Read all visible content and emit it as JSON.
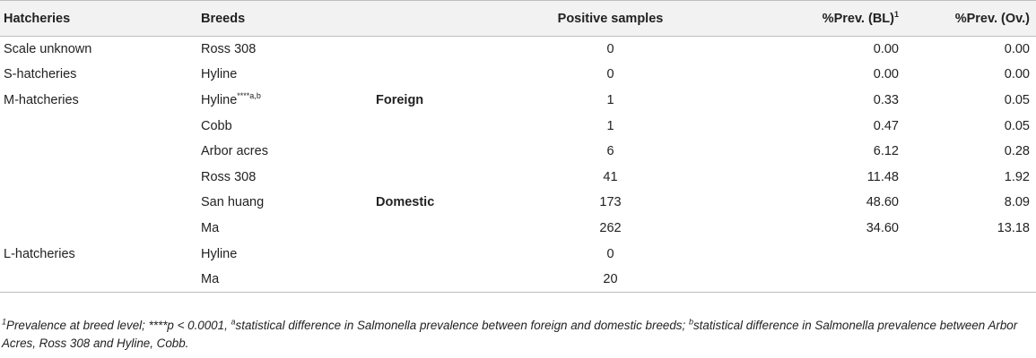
{
  "header": {
    "hatcheries": "Hatcheries",
    "breeds": "Breeds",
    "origin": "",
    "positive": "Positive samples",
    "prev_bl": "%Prev. (BL)",
    "prev_bl_sup": "1",
    "prev_ov": "%Prev. (Ov.)"
  },
  "rows": [
    {
      "hatchery": "Scale unknown",
      "breed": "Ross 308",
      "breed_sup": "",
      "origin": "",
      "positive": "0",
      "prev_bl": "0.00",
      "prev_ov": "0.00"
    },
    {
      "hatchery": "S-hatcheries",
      "breed": "Hyline",
      "breed_sup": "",
      "origin": "",
      "positive": "0",
      "prev_bl": "0.00",
      "prev_ov": "0.00"
    },
    {
      "hatchery": "M-hatcheries",
      "breed": "Hyline",
      "breed_sup": "****a,b",
      "origin": "Foreign",
      "positive": "1",
      "prev_bl": "0.33",
      "prev_ov": "0.05"
    },
    {
      "hatchery": "",
      "breed": "Cobb",
      "breed_sup": "",
      "origin": "",
      "positive": "1",
      "prev_bl": "0.47",
      "prev_ov": "0.05"
    },
    {
      "hatchery": "",
      "breed": "Arbor acres",
      "breed_sup": "",
      "origin": "",
      "positive": "6",
      "prev_bl": "6.12",
      "prev_ov": "0.28"
    },
    {
      "hatchery": "",
      "breed": "Ross 308",
      "breed_sup": "",
      "origin": "",
      "positive": "41",
      "prev_bl": "11.48",
      "prev_ov": "1.92"
    },
    {
      "hatchery": "",
      "breed": "San huang",
      "breed_sup": "",
      "origin": "Domestic",
      "positive": "173",
      "prev_bl": "48.60",
      "prev_ov": "8.09"
    },
    {
      "hatchery": "",
      "breed": "Ma",
      "breed_sup": "",
      "origin": "",
      "positive": "262",
      "prev_bl": "34.60",
      "prev_ov": "13.18"
    },
    {
      "hatchery": "L-hatcheries",
      "breed": "Hyline",
      "breed_sup": "",
      "origin": "",
      "positive": "0",
      "prev_bl": "",
      "prev_ov": ""
    },
    {
      "hatchery": "",
      "breed": "Ma",
      "breed_sup": "",
      "origin": "",
      "positive": "20",
      "prev_bl": "",
      "prev_ov": ""
    }
  ],
  "footnote": {
    "sup1": "1",
    "text1": "Prevalence at breed level; ****p < 0.0001, ",
    "sup_a": "a",
    "text_a": "statistical difference in Salmonella prevalence between foreign and domestic breeds; ",
    "sup_b": "b",
    "text_b": "statistical difference in Salmonella prevalence between Arbor Acres, Ross 308 and Hyline, Cobb."
  }
}
